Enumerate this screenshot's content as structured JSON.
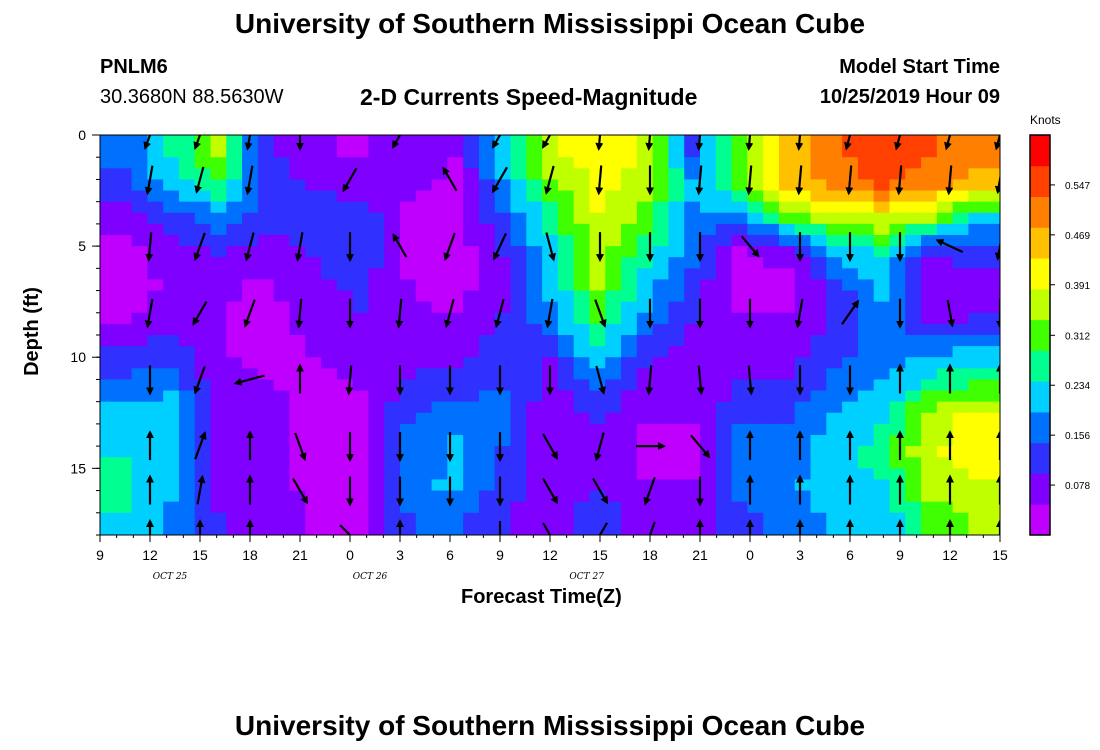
{
  "header": {
    "title": "University of Southern Mississippi Ocean Cube",
    "station": "PNLM6",
    "coords": "30.3680N 88.5630W",
    "plot_title": "2-D Currents Speed-Magnitude",
    "model_label": "Model Start Time",
    "model_time": "10/25/2019 Hour 09"
  },
  "footer": {
    "title": "University of Southern Mississippi Ocean Cube"
  },
  "chart_data": {
    "type": "heatmap",
    "title": "2-D Currents Speed-Magnitude",
    "xlabel": "Forecast Time(Z)",
    "ylabel": "Depth (ft)",
    "x_tick_labels": [
      "9",
      "12",
      "15",
      "18",
      "21",
      "0",
      "3",
      "6",
      "9",
      "12",
      "15",
      "18",
      "21",
      "0",
      "3",
      "6",
      "9",
      "12",
      "15"
    ],
    "x_range_hours": [
      0,
      54
    ],
    "date_labels": [
      "OCT 25",
      "OCT 26",
      "OCT 27"
    ],
    "y_ticks": [
      "0",
      "5",
      "10",
      "15"
    ],
    "y_range_ft": [
      0,
      18
    ],
    "y_inverted": true,
    "colorbar": {
      "unit": "Knots",
      "ticks": [
        "0.078",
        "0.156",
        "0.234",
        "0.312",
        "0.391",
        "0.469",
        "0.547"
      ],
      "range": [
        0,
        0.625
      ],
      "colors": [
        "#c000ff",
        "#8000ff",
        "#3030ff",
        "#0070ff",
        "#00d0ff",
        "#00ff90",
        "#40ff00",
        "#c0ff00",
        "#ffff00",
        "#ffc000",
        "#ff8000",
        "#ff4000",
        "#ff0000"
      ]
    },
    "depths_ft": [
      0.5,
      2,
      3.5,
      5,
      6.5,
      8,
      9.5,
      11,
      12.5,
      14,
      15.5,
      17
    ],
    "times_h": [
      0,
      3,
      6,
      9,
      12,
      15,
      18,
      21,
      24,
      27,
      30,
      33,
      36,
      39,
      42,
      45,
      48,
      51,
      54
    ],
    "speed_knots": [
      [
        0.16,
        0.25,
        0.34,
        0.1,
        0.06,
        0.04,
        0.09,
        0.05,
        0.23,
        0.38,
        0.42,
        0.38,
        0.14,
        0.32,
        0.46,
        0.52,
        0.56,
        0.54,
        0.5
      ],
      [
        0.12,
        0.21,
        0.28,
        0.14,
        0.09,
        0.07,
        0.06,
        0.04,
        0.18,
        0.32,
        0.4,
        0.36,
        0.2,
        0.3,
        0.44,
        0.5,
        0.54,
        0.5,
        0.46
      ],
      [
        0.08,
        0.12,
        0.18,
        0.12,
        0.12,
        0.14,
        0.04,
        0.03,
        0.14,
        0.26,
        0.38,
        0.32,
        0.18,
        0.16,
        0.3,
        0.36,
        0.38,
        0.34,
        0.22
      ],
      [
        0.03,
        0.08,
        0.1,
        0.07,
        0.1,
        0.13,
        0.04,
        0.02,
        0.1,
        0.22,
        0.36,
        0.26,
        0.16,
        0.04,
        0.07,
        0.2,
        0.26,
        0.1,
        0.12
      ],
      [
        0.02,
        0.06,
        0.06,
        0.04,
        0.08,
        0.11,
        0.05,
        0.03,
        0.08,
        0.2,
        0.34,
        0.22,
        0.12,
        0.03,
        0.03,
        0.12,
        0.2,
        0.06,
        0.08
      ],
      [
        0.04,
        0.08,
        0.05,
        0.03,
        0.06,
        0.09,
        0.06,
        0.05,
        0.1,
        0.18,
        0.3,
        0.18,
        0.1,
        0.05,
        0.05,
        0.1,
        0.18,
        0.08,
        0.1
      ],
      [
        0.1,
        0.12,
        0.05,
        0.04,
        0.05,
        0.07,
        0.08,
        0.08,
        0.12,
        0.1,
        0.24,
        0.12,
        0.08,
        0.08,
        0.07,
        0.12,
        0.16,
        0.18,
        0.2
      ],
      [
        0.16,
        0.18,
        0.06,
        0.05,
        0.04,
        0.05,
        0.1,
        0.12,
        0.14,
        0.08,
        0.16,
        0.07,
        0.06,
        0.1,
        0.1,
        0.16,
        0.2,
        0.26,
        0.3
      ],
      [
        0.22,
        0.22,
        0.06,
        0.06,
        0.04,
        0.04,
        0.14,
        0.18,
        0.16,
        0.06,
        0.1,
        0.05,
        0.05,
        0.14,
        0.14,
        0.2,
        0.24,
        0.36,
        0.4
      ],
      [
        0.24,
        0.22,
        0.07,
        0.07,
        0.03,
        0.03,
        0.16,
        0.2,
        0.14,
        0.05,
        0.08,
        0.04,
        0.04,
        0.16,
        0.16,
        0.22,
        0.26,
        0.38,
        0.4
      ],
      [
        0.26,
        0.2,
        0.08,
        0.08,
        0.03,
        0.03,
        0.18,
        0.2,
        0.12,
        0.06,
        0.09,
        0.05,
        0.05,
        0.16,
        0.18,
        0.22,
        0.24,
        0.36,
        0.38
      ],
      [
        0.24,
        0.18,
        0.1,
        0.08,
        0.04,
        0.03,
        0.14,
        0.16,
        0.1,
        0.08,
        0.12,
        0.08,
        0.06,
        0.12,
        0.16,
        0.2,
        0.2,
        0.3,
        0.34
      ]
    ],
    "vectors": [
      {
        "t": 3,
        "d": 0,
        "ang": 200,
        "len": 28
      },
      {
        "t": 6,
        "d": 0,
        "ang": 200,
        "len": 28
      },
      {
        "t": 9,
        "d": 0,
        "ang": 190,
        "len": 28
      },
      {
        "t": 12,
        "d": 0,
        "ang": 180,
        "len": 28
      },
      {
        "t": 18,
        "d": 0,
        "ang": 210,
        "len": 28
      },
      {
        "t": 24,
        "d": 0,
        "ang": 210,
        "len": 28
      },
      {
        "t": 27,
        "d": 0,
        "ang": 210,
        "len": 28
      },
      {
        "t": 30,
        "d": 0,
        "ang": 185,
        "len": 28
      },
      {
        "t": 33,
        "d": 0,
        "ang": 185,
        "len": 28
      },
      {
        "t": 36,
        "d": 0,
        "ang": 185,
        "len": 28
      },
      {
        "t": 39,
        "d": 0,
        "ang": 185,
        "len": 28
      },
      {
        "t": 42,
        "d": 0,
        "ang": 185,
        "len": 28
      },
      {
        "t": 45,
        "d": 0,
        "ang": 195,
        "len": 28
      },
      {
        "t": 48,
        "d": 0,
        "ang": 195,
        "len": 28
      },
      {
        "t": 51,
        "d": 0,
        "ang": 195,
        "len": 28
      },
      {
        "t": 54,
        "d": 0,
        "ang": 195,
        "len": 28
      },
      {
        "t": 3,
        "d": 2,
        "ang": 190,
        "len": 28
      },
      {
        "t": 6,
        "d": 2,
        "ang": 195,
        "len": 26
      },
      {
        "t": 9,
        "d": 2,
        "ang": 190,
        "len": 28
      },
      {
        "t": 15,
        "d": 2,
        "ang": 210,
        "len": 26
      },
      {
        "t": 21,
        "d": 2,
        "ang": 330,
        "len": 26
      },
      {
        "t": 24,
        "d": 2,
        "ang": 210,
        "len": 28
      },
      {
        "t": 27,
        "d": 2,
        "ang": 195,
        "len": 28
      },
      {
        "t": 30,
        "d": 2,
        "ang": 185,
        "len": 28
      },
      {
        "t": 33,
        "d": 2,
        "ang": 180,
        "len": 28
      },
      {
        "t": 36,
        "d": 2,
        "ang": 185,
        "len": 28
      },
      {
        "t": 39,
        "d": 2,
        "ang": 185,
        "len": 28
      },
      {
        "t": 42,
        "d": 2,
        "ang": 185,
        "len": 28
      },
      {
        "t": 45,
        "d": 2,
        "ang": 185,
        "len": 28
      },
      {
        "t": 48,
        "d": 2,
        "ang": 185,
        "len": 28
      },
      {
        "t": 51,
        "d": 2,
        "ang": 185,
        "len": 28
      },
      {
        "t": 54,
        "d": 2,
        "ang": 190,
        "len": 26
      },
      {
        "t": 3,
        "d": 5,
        "ang": 185,
        "len": 28
      },
      {
        "t": 6,
        "d": 5,
        "ang": 200,
        "len": 28
      },
      {
        "t": 9,
        "d": 5,
        "ang": 195,
        "len": 28
      },
      {
        "t": 12,
        "d": 5,
        "ang": 190,
        "len": 28
      },
      {
        "t": 15,
        "d": 5,
        "ang": 180,
        "len": 28
      },
      {
        "t": 18,
        "d": 5,
        "ang": 330,
        "len": 26
      },
      {
        "t": 21,
        "d": 5,
        "ang": 200,
        "len": 28
      },
      {
        "t": 24,
        "d": 5,
        "ang": 205,
        "len": 28
      },
      {
        "t": 27,
        "d": 5,
        "ang": 165,
        "len": 28
      },
      {
        "t": 30,
        "d": 5,
        "ang": 180,
        "len": 28
      },
      {
        "t": 33,
        "d": 5,
        "ang": 180,
        "len": 28
      },
      {
        "t": 36,
        "d": 5,
        "ang": 180,
        "len": 28
      },
      {
        "t": 39,
        "d": 5,
        "ang": 140,
        "len": 26
      },
      {
        "t": 42,
        "d": 5,
        "ang": 180,
        "len": 28
      },
      {
        "t": 45,
        "d": 5,
        "ang": 180,
        "len": 28
      },
      {
        "t": 48,
        "d": 5,
        "ang": 180,
        "len": 28
      },
      {
        "t": 51,
        "d": 5,
        "ang": 295,
        "len": 28
      },
      {
        "t": 54,
        "d": 5,
        "ang": 190,
        "len": 26
      },
      {
        "t": 3,
        "d": 8,
        "ang": 190,
        "len": 28
      },
      {
        "t": 6,
        "d": 8,
        "ang": 210,
        "len": 26
      },
      {
        "t": 9,
        "d": 8,
        "ang": 200,
        "len": 28
      },
      {
        "t": 12,
        "d": 8,
        "ang": 185,
        "len": 28
      },
      {
        "t": 15,
        "d": 8,
        "ang": 180,
        "len": 28
      },
      {
        "t": 18,
        "d": 8,
        "ang": 185,
        "len": 28
      },
      {
        "t": 21,
        "d": 8,
        "ang": 195,
        "len": 28
      },
      {
        "t": 24,
        "d": 8,
        "ang": 195,
        "len": 28
      },
      {
        "t": 27,
        "d": 8,
        "ang": 190,
        "len": 28
      },
      {
        "t": 30,
        "d": 8,
        "ang": 160,
        "len": 28
      },
      {
        "t": 33,
        "d": 8,
        "ang": 180,
        "len": 28
      },
      {
        "t": 36,
        "d": 8,
        "ang": 180,
        "len": 28
      },
      {
        "t": 39,
        "d": 8,
        "ang": 180,
        "len": 28
      },
      {
        "t": 42,
        "d": 8,
        "ang": 190,
        "len": 28
      },
      {
        "t": 45,
        "d": 8,
        "ang": 35,
        "len": 28
      },
      {
        "t": 48,
        "d": 8,
        "ang": 180,
        "len": 28
      },
      {
        "t": 51,
        "d": 8,
        "ang": 170,
        "len": 26
      },
      {
        "t": 54,
        "d": 8,
        "ang": 180,
        "len": 28
      },
      {
        "t": 3,
        "d": 11,
        "ang": 180,
        "len": 28
      },
      {
        "t": 6,
        "d": 11,
        "ang": 200,
        "len": 28
      },
      {
        "t": 9,
        "d": 11,
        "ang": 255,
        "len": 30
      },
      {
        "t": 12,
        "d": 11,
        "ang": 0,
        "len": 28
      },
      {
        "t": 15,
        "d": 11,
        "ang": 185,
        "len": 28
      },
      {
        "t": 18,
        "d": 11,
        "ang": 180,
        "len": 28
      },
      {
        "t": 21,
        "d": 11,
        "ang": 180,
        "len": 28
      },
      {
        "t": 24,
        "d": 11,
        "ang": 180,
        "len": 28
      },
      {
        "t": 27,
        "d": 11,
        "ang": 180,
        "len": 28
      },
      {
        "t": 30,
        "d": 11,
        "ang": 165,
        "len": 28
      },
      {
        "t": 33,
        "d": 11,
        "ang": 185,
        "len": 28
      },
      {
        "t": 36,
        "d": 11,
        "ang": 175,
        "len": 28
      },
      {
        "t": 39,
        "d": 11,
        "ang": 175,
        "len": 28
      },
      {
        "t": 42,
        "d": 11,
        "ang": 180,
        "len": 28
      },
      {
        "t": 45,
        "d": 11,
        "ang": 180,
        "len": 28
      },
      {
        "t": 48,
        "d": 11,
        "ang": 0,
        "len": 28
      },
      {
        "t": 51,
        "d": 11,
        "ang": 0,
        "len": 28
      },
      {
        "t": 54,
        "d": 11,
        "ang": 0,
        "len": 28
      },
      {
        "t": 3,
        "d": 14,
        "ang": 0,
        "len": 28
      },
      {
        "t": 6,
        "d": 14,
        "ang": 20,
        "len": 28
      },
      {
        "t": 9,
        "d": 14,
        "ang": 0,
        "len": 28
      },
      {
        "t": 12,
        "d": 14,
        "ang": 160,
        "len": 28
      },
      {
        "t": 15,
        "d": 14,
        "ang": 180,
        "len": 28
      },
      {
        "t": 18,
        "d": 14,
        "ang": 180,
        "len": 28
      },
      {
        "t": 21,
        "d": 14,
        "ang": 180,
        "len": 28
      },
      {
        "t": 24,
        "d": 14,
        "ang": 180,
        "len": 28
      },
      {
        "t": 27,
        "d": 14,
        "ang": 150,
        "len": 28
      },
      {
        "t": 30,
        "d": 14,
        "ang": 195,
        "len": 28
      },
      {
        "t": 33,
        "d": 14,
        "ang": 90,
        "len": 28
      },
      {
        "t": 36,
        "d": 14,
        "ang": 140,
        "len": 28
      },
      {
        "t": 39,
        "d": 14,
        "ang": 0,
        "len": 28
      },
      {
        "t": 42,
        "d": 14,
        "ang": 0,
        "len": 28
      },
      {
        "t": 45,
        "d": 14,
        "ang": 0,
        "len": 28
      },
      {
        "t": 48,
        "d": 14,
        "ang": 0,
        "len": 28
      },
      {
        "t": 51,
        "d": 14,
        "ang": 0,
        "len": 28
      },
      {
        "t": 54,
        "d": 14,
        "ang": 0,
        "len": 28
      },
      {
        "t": 3,
        "d": 16,
        "ang": 0,
        "len": 28
      },
      {
        "t": 6,
        "d": 16,
        "ang": 10,
        "len": 28
      },
      {
        "t": 9,
        "d": 16,
        "ang": 0,
        "len": 28
      },
      {
        "t": 12,
        "d": 16,
        "ang": 150,
        "len": 28
      },
      {
        "t": 15,
        "d": 16,
        "ang": 180,
        "len": 28
      },
      {
        "t": 18,
        "d": 16,
        "ang": 180,
        "len": 28
      },
      {
        "t": 21,
        "d": 16,
        "ang": 180,
        "len": 28
      },
      {
        "t": 24,
        "d": 16,
        "ang": 180,
        "len": 28
      },
      {
        "t": 27,
        "d": 16,
        "ang": 150,
        "len": 28
      },
      {
        "t": 30,
        "d": 16,
        "ang": 150,
        "len": 28
      },
      {
        "t": 33,
        "d": 16,
        "ang": 200,
        "len": 28
      },
      {
        "t": 36,
        "d": 16,
        "ang": 180,
        "len": 28
      },
      {
        "t": 39,
        "d": 16,
        "ang": 0,
        "len": 28
      },
      {
        "t": 42,
        "d": 16,
        "ang": 0,
        "len": 28
      },
      {
        "t": 45,
        "d": 16,
        "ang": 0,
        "len": 28
      },
      {
        "t": 48,
        "d": 16,
        "ang": 0,
        "len": 28
      },
      {
        "t": 51,
        "d": 16,
        "ang": 0,
        "len": 28
      },
      {
        "t": 54,
        "d": 16,
        "ang": 0,
        "len": 28
      },
      {
        "t": 3,
        "d": 18,
        "ang": 0,
        "len": 28
      },
      {
        "t": 6,
        "d": 18,
        "ang": 0,
        "len": 28
      },
      {
        "t": 9,
        "d": 18,
        "ang": 0,
        "len": 28
      },
      {
        "t": 15,
        "d": 18,
        "ang": 135,
        "len": 28
      },
      {
        "t": 18,
        "d": 18,
        "ang": 0,
        "len": 28
      },
      {
        "t": 24,
        "d": 18,
        "ang": 180,
        "len": 28
      },
      {
        "t": 27,
        "d": 18,
        "ang": 150,
        "len": 28
      },
      {
        "t": 30,
        "d": 18,
        "ang": 210,
        "len": 28
      },
      {
        "t": 33,
        "d": 18,
        "ang": 200,
        "len": 28
      },
      {
        "t": 36,
        "d": 18,
        "ang": 0,
        "len": 28
      },
      {
        "t": 39,
        "d": 18,
        "ang": 0,
        "len": 28
      },
      {
        "t": 42,
        "d": 18,
        "ang": 0,
        "len": 28
      },
      {
        "t": 45,
        "d": 18,
        "ang": 0,
        "len": 28
      },
      {
        "t": 48,
        "d": 18,
        "ang": 0,
        "len": 28
      },
      {
        "t": 51,
        "d": 18,
        "ang": 0,
        "len": 28
      },
      {
        "t": 54,
        "d": 18,
        "ang": 0,
        "len": 28
      }
    ]
  }
}
